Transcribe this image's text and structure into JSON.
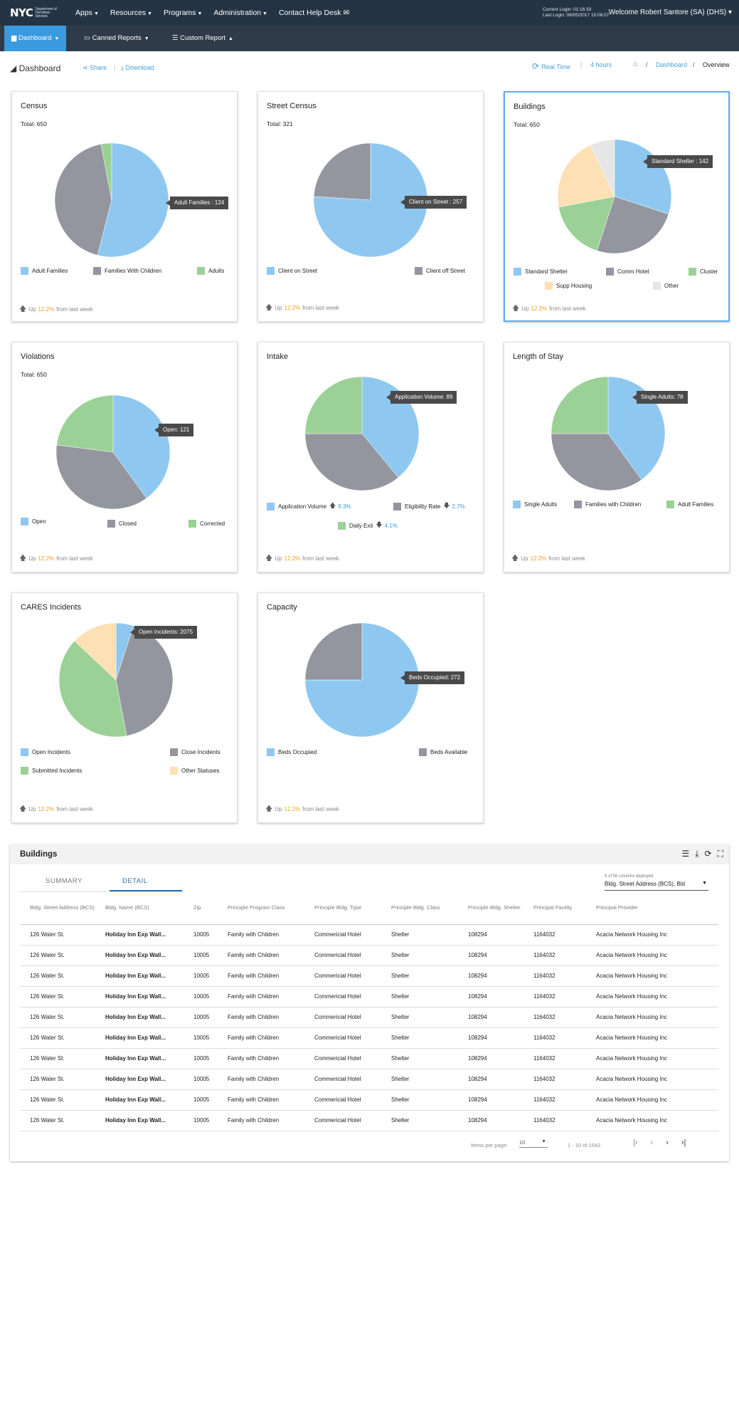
{
  "header": {
    "logo": "NYC",
    "logo_sub": "Department of Homeless Services",
    "nav": [
      {
        "label": "Apps",
        "caret": "▼"
      },
      {
        "label": "Resources",
        "caret": "▼"
      },
      {
        "label": "Programs",
        "caret": "▼"
      },
      {
        "label": "Administration",
        "caret": "▼"
      },
      {
        "label": "Contact Help Desk",
        "caret": "✉"
      }
    ],
    "current_login": "Current Login: 01:16:33",
    "last_login": "Last Login: 06/05/2017 15:08:07",
    "welcome": "Welcome Robert Santore (SA) (DHS) ▾"
  },
  "subnav": {
    "dashboard": "Dashboard",
    "canned": "Canned Reports",
    "custom": "Custom Report"
  },
  "pagehead": {
    "title": "Dashboard",
    "share": "Share",
    "download": "Download",
    "realtime": "Real Time",
    "interval": "4 hours",
    "crumb_dashboard": "Dashboard",
    "crumb_sep": "/",
    "crumb_overview": "Overview"
  },
  "footer_text": {
    "up": "Up",
    "value": "12.2%",
    "suffix": "from last week"
  },
  "colors": {
    "blue": "#8ec8f0",
    "gray": "#94969f",
    "green": "#9bd196",
    "peach": "#fde0b4",
    "light": "#e6e6e6"
  },
  "charts": {
    "census": {
      "title": "Census",
      "total": "Total: 650",
      "tooltip": "Adult Families : 124",
      "legend": [
        {
          "label": "Adult Families",
          "color": "#8ec8f0"
        },
        {
          "label": "Families With Children",
          "color": "#94969f"
        },
        {
          "label": "Adults",
          "color": "#9bd196"
        }
      ]
    },
    "street": {
      "title": "Street Census",
      "total": "Total: 321",
      "tooltip": "Client on Street : 257",
      "legend": [
        {
          "label": "Client on Street",
          "color": "#8ec8f0"
        },
        {
          "label": "Client off Street",
          "color": "#94969f"
        }
      ]
    },
    "buildings": {
      "title": "Buildings",
      "total": "Total: 650",
      "tooltip": "Standard Shelter : 142",
      "legend": [
        {
          "label": "Standard Shelter",
          "color": "#8ec8f0"
        },
        {
          "label": "Comm Hotel",
          "color": "#94969f"
        },
        {
          "label": "Cluster",
          "color": "#9bd196"
        },
        {
          "label": "Supp Housing",
          "color": "#fde0b4"
        },
        {
          "label": "Other",
          "color": "#e6e6e6"
        }
      ]
    },
    "violations": {
      "title": "Violations",
      "total": "Total: 650",
      "tooltip": "Open: 121",
      "legend": [
        {
          "label": "Open",
          "color": "#8ec8f0"
        },
        {
          "label": "Closed",
          "color": "#94969f"
        },
        {
          "label": "Corrected",
          "color": "#9bd196"
        }
      ]
    },
    "intake": {
      "title": "Intake",
      "tooltip": "Application Volume: 89",
      "legend": [
        {
          "label": "Application Volume",
          "color": "#8ec8f0",
          "arrow": "🡅",
          "pct": "9.3%"
        },
        {
          "label": "Eligibility Rate",
          "color": "#94969f",
          "arrow": "🡇",
          "pct": "2.7%"
        },
        {
          "label": "Daily Exit",
          "color": "#9bd196",
          "arrow": "🡇",
          "pct": "4.1%"
        }
      ]
    },
    "los": {
      "title": "Length of Stay",
      "tooltip": "Single Adults: 78",
      "legend": [
        {
          "label": "Single Adults",
          "color": "#8ec8f0"
        },
        {
          "label": "Families with Children",
          "color": "#94969f"
        },
        {
          "label": "Adult Families",
          "color": "#9bd196"
        }
      ]
    },
    "cares": {
      "title": "CARES Incidents",
      "tooltip": "Open Incidents: 2075",
      "legend": [
        {
          "label": "Open Incidents",
          "color": "#8ec8f0"
        },
        {
          "label": "Close Incidents",
          "color": "#94969f"
        },
        {
          "label": "Submitted Incidents",
          "color": "#9bd196"
        },
        {
          "label": "Other Statuses",
          "color": "#fde0b4"
        }
      ]
    },
    "capacity": {
      "title": "Capacity",
      "tooltip": "Beds Occupied: 272",
      "legend": [
        {
          "label": "Beds Occupied",
          "color": "#8ec8f0"
        },
        {
          "label": "Beds Available",
          "color": "#94969f"
        }
      ]
    }
  },
  "chart_data": [
    {
      "type": "pie",
      "title": "Census",
      "categories": [
        "Adult Families",
        "Families With Children",
        "Adults"
      ],
      "values": [
        0.54,
        0.43,
        0.03
      ],
      "annotation": "Adult Families : 124"
    },
    {
      "type": "pie",
      "title": "Street Census",
      "categories": [
        "Client on Street",
        "Client off Street"
      ],
      "values": [
        0.76,
        0.24
      ],
      "annotation": "Client on Street : 257"
    },
    {
      "type": "pie",
      "title": "Buildings",
      "categories": [
        "Standard Shelter",
        "Comm Hotel",
        "Cluster",
        "Supp Housing",
        "Other"
      ],
      "values": [
        0.3,
        0.25,
        0.17,
        0.21,
        0.07
      ],
      "annotation": "Standard Shelter : 142"
    },
    {
      "type": "pie",
      "title": "Violations",
      "categories": [
        "Open",
        "Closed",
        "Corrected"
      ],
      "values": [
        0.4,
        0.37,
        0.23
      ],
      "annotation": "Open: 121"
    },
    {
      "type": "pie",
      "title": "Intake",
      "categories": [
        "Application Volume",
        "Eligibility Rate",
        "Daily Exit"
      ],
      "values": [
        0.39,
        0.36,
        0.25
      ],
      "annotation": "Application Volume: 89"
    },
    {
      "type": "pie",
      "title": "Length of Stay",
      "categories": [
        "Single Adults",
        "Families with Children",
        "Adult Families"
      ],
      "values": [
        0.4,
        0.35,
        0.25
      ],
      "annotation": "Single Adults: 78"
    },
    {
      "type": "pie",
      "title": "CARES Incidents",
      "categories": [
        "Open Incidents",
        "Close Incidents",
        "Submitted Incidents",
        "Other Statuses"
      ],
      "values": [
        0.05,
        0.42,
        0.4,
        0.13
      ],
      "annotation": "Open Incidents: 2075"
    },
    {
      "type": "pie",
      "title": "Capacity",
      "categories": [
        "Beds Occupied",
        "Beds Available"
      ],
      "values": [
        0.75,
        0.25
      ],
      "annotation": "Beds Occupied: 272"
    }
  ],
  "table": {
    "title": "Buildings",
    "tabs": {
      "summary": "SUMMARY",
      "detail": "DETAIL"
    },
    "col_caption": "9 of 56 columns deployed",
    "col_select": "Bldg. Street Address (BCS), Bld",
    "columns": [
      "Bldg. Street Address (BCS)",
      "Bldg. Name (BCS)",
      "Zip",
      "Principle Program Class",
      "Principle Bldg. Type",
      "Principle Bldg. Class",
      "Principle Bldg. Shelter",
      "Principal Facility",
      "Principal Provider"
    ],
    "rows": [
      [
        "126 Water St.",
        "Holiday Inn Exp Wall...",
        "10005",
        "Family with Children",
        "Commericial Hotel",
        "Shelter",
        "108294",
        "1164032",
        "Acacia Network Housing Inc"
      ],
      [
        "126 Water St.",
        "Holiday Inn Exp Wall...",
        "10005",
        "Family with Children",
        "Commericial Hotel",
        "Shelter",
        "108294",
        "1164032",
        "Acacia Network Housing Inc"
      ],
      [
        "126 Water St.",
        "Holiday Inn Exp Wall...",
        "10005",
        "Family with Children",
        "Commericial Hotel",
        "Shelter",
        "108294",
        "1164032",
        "Acacia Network Housing Inc"
      ],
      [
        "126 Water St.",
        "Holiday Inn Exp Wall...",
        "10005",
        "Family with Children",
        "Commericial Hotel",
        "Shelter",
        "108294",
        "1164032",
        "Acacia Network Housing Inc"
      ],
      [
        "126 Water St.",
        "Holiday Inn Exp Wall...",
        "10005",
        "Family with Children",
        "Commericial Hotel",
        "Shelter",
        "108294",
        "1164032",
        "Acacia Network Housing Inc"
      ],
      [
        "126 Water St.",
        "Holiday Inn Exp Wall...",
        "10005",
        "Family with Children",
        "Commericial Hotel",
        "Shelter",
        "108294",
        "1164032",
        "Acacia Network Housing Inc"
      ],
      [
        "126 Water St.",
        "Holiday Inn Exp Wall...",
        "10005",
        "Family with Children",
        "Commericial Hotel",
        "Shelter",
        "108294",
        "1164032",
        "Acacia Network Housing Inc"
      ],
      [
        "126 Water St.",
        "Holiday Inn Exp Wall...",
        "10005",
        "Family with Children",
        "Commericial Hotel",
        "Shelter",
        "108294",
        "1164032",
        "Acacia Network Housing Inc"
      ],
      [
        "126 Water St.",
        "Holiday Inn Exp Wall...",
        "10005",
        "Family with Children",
        "Commericial Hotel",
        "Shelter",
        "108294",
        "1164032",
        "Acacia Network Housing Inc"
      ],
      [
        "126 Water St.",
        "Holiday Inn Exp Wall...",
        "10005",
        "Family with Children",
        "Commericial Hotel",
        "Shelter",
        "108294",
        "1164032",
        "Acacia Network Housing Inc"
      ]
    ],
    "items_per_page_label": "Items per page:",
    "items_per_page": "10",
    "range": "1 - 10 of 1542"
  }
}
